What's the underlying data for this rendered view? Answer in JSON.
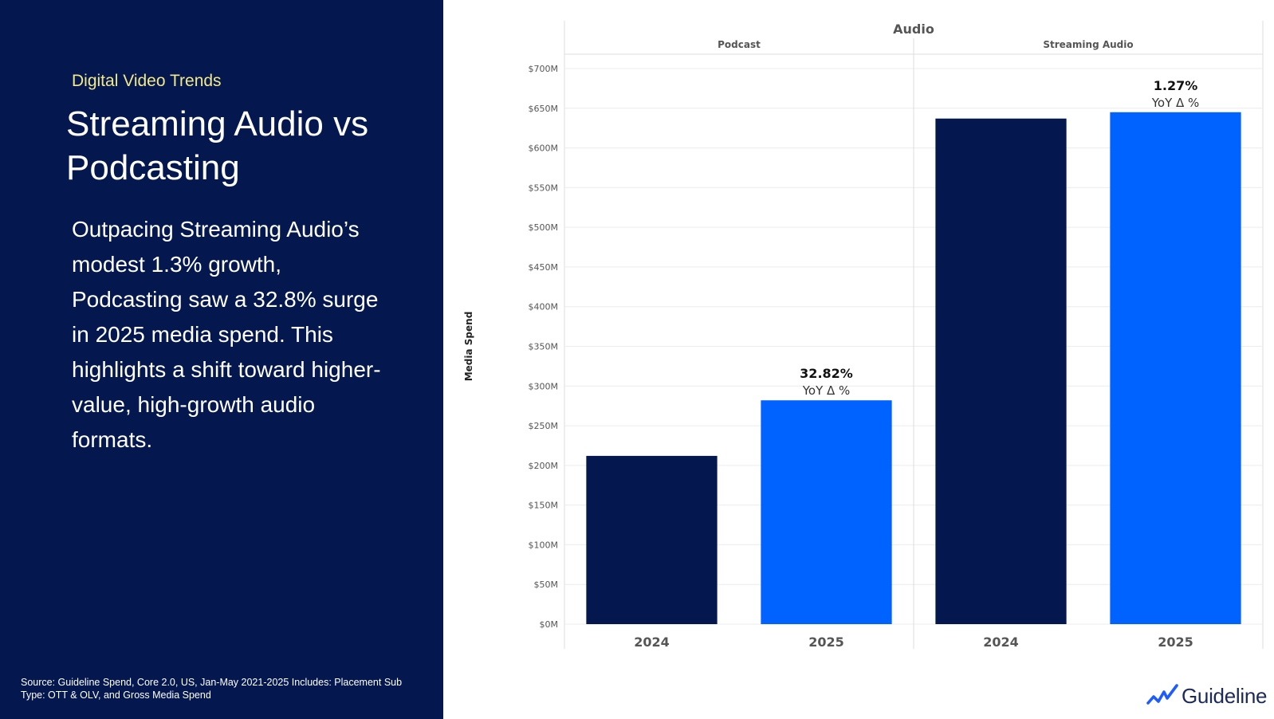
{
  "slide": {
    "eyebrow": "Digital Video Trends",
    "title": "Streaming Audio vs Podcasting",
    "body": "Outpacing Streaming Audio’s modest 1.3% growth, Podcasting saw a 32.8% surge in 2025 media spend.  This highlights a shift toward higher-value, high-growth audio formats.",
    "source": "Source: Guideline Spend, Core 2.0, US, Jan-May 2021-2025 Includes: Placement Sub Type: OTT & OLV, and Gross Media Spend",
    "logo_text": "Guideline"
  },
  "colors": {
    "panel": "#04184f",
    "eyebrow": "#f2e98a",
    "bar_2024": "#04184f",
    "bar_2025": "#0062ff",
    "grid": "#ececec",
    "axis_text": "#555555"
  },
  "chart_data": {
    "type": "bar",
    "title": "Audio",
    "ylabel": "Media Spend",
    "ylim": [
      0,
      700
    ],
    "y_unit": "$M",
    "y_ticks": [
      "$0M",
      "$50M",
      "$100M",
      "$150M",
      "$200M",
      "$250M",
      "$300M",
      "$350M",
      "$400M",
      "$450M",
      "$500M",
      "$550M",
      "$600M",
      "$650M",
      "$700M"
    ],
    "grid": true,
    "panels": [
      {
        "name": "Podcast",
        "categories": [
          "2024",
          "2025"
        ],
        "values": [
          212,
          282
        ],
        "annotation": {
          "pct": "32.82%",
          "label": "YoY Δ %"
        }
      },
      {
        "name": "Streaming Audio",
        "categories": [
          "2024",
          "2025"
        ],
        "values": [
          637,
          645
        ],
        "annotation": {
          "pct": "1.27%",
          "label": "YoY Δ %"
        }
      }
    ]
  }
}
